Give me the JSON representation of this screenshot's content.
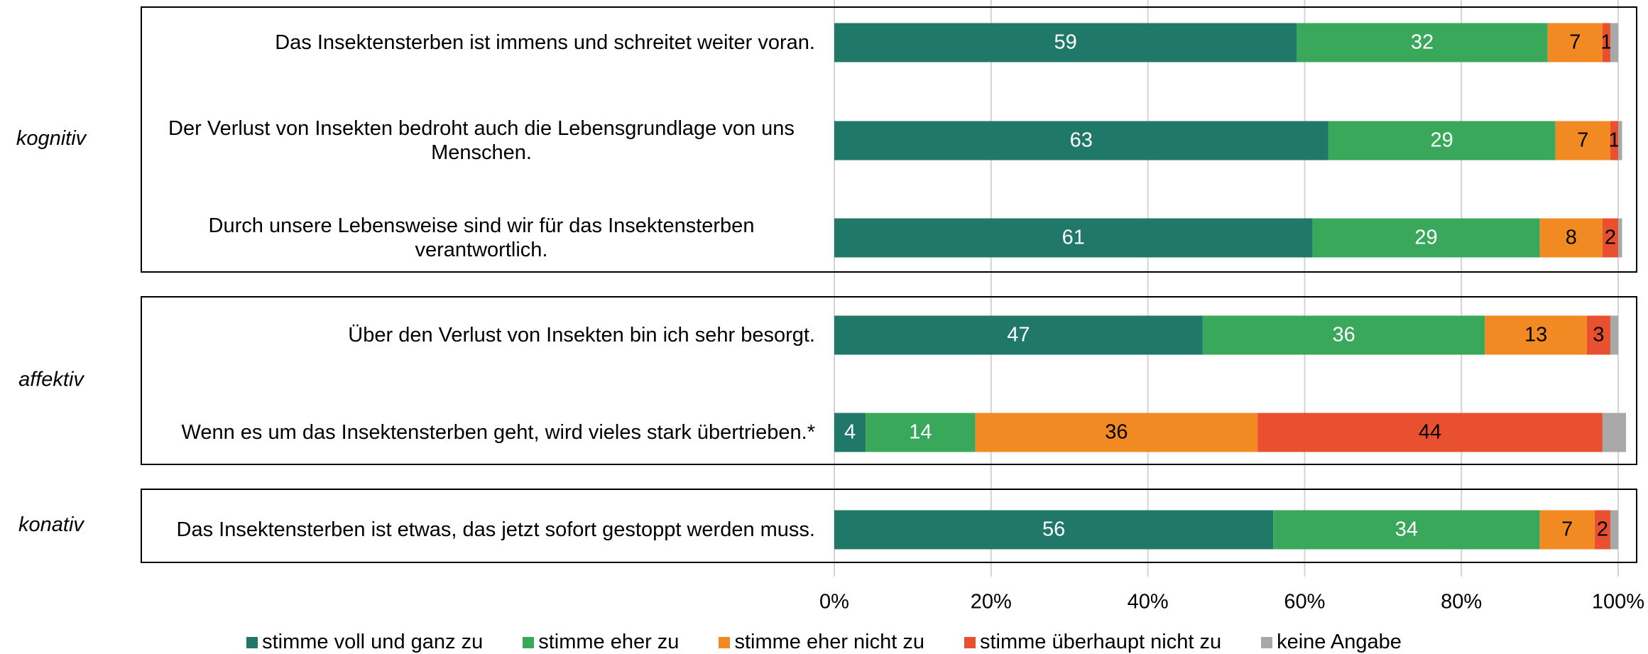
{
  "chart_data": {
    "type": "stacked_barh",
    "categories": [
      "Das Insektensterben ist immens und schreitet weiter voran.",
      "Der Verlust von Insekten bedroht auch die Lebensgrundlage von uns Menschen.",
      "Durch unsere Lebensweise sind wir für das Insektensterben verantwortlich.",
      "Über den Verlust von Insekten bin ich sehr besorgt.",
      "Wenn es um das Insektensterben geht, wird vieles stark übertrieben.*",
      "Das Insektensterben ist etwas, das jetzt sofort gestoppt werden muss."
    ],
    "groups": [
      {
        "label": "kognitiv",
        "count": 3
      },
      {
        "label": "affektiv",
        "count": 2
      },
      {
        "label": "konativ",
        "count": 1
      }
    ],
    "series": [
      {
        "name": "stimme voll und ganz zu",
        "color": "#207868",
        "label_color": "#ffffff",
        "show_labels": true,
        "values": [
          59,
          63,
          61,
          47,
          4,
          56
        ]
      },
      {
        "name": "stimme eher zu",
        "color": "#3aa85a",
        "label_color": "#ffffff",
        "show_labels": true,
        "values": [
          32,
          29,
          29,
          36,
          14,
          34
        ]
      },
      {
        "name": "stimme eher nicht zu",
        "color": "#f28a24",
        "label_color": "#000000",
        "show_labels": true,
        "values": [
          7,
          7,
          8,
          13,
          36,
          7
        ]
      },
      {
        "name": "stimme überhaupt nicht zu",
        "color": "#e8502f",
        "label_color": "#000000",
        "show_labels": true,
        "values": [
          1,
          1,
          2,
          3,
          44,
          2
        ]
      },
      {
        "name": "keine Angabe",
        "color": "#a8a8a8",
        "label_color": "#000000",
        "show_labels": false,
        "values": [
          1,
          0.5,
          0.5,
          1,
          3,
          1
        ]
      }
    ],
    "xlim": [
      0,
      100
    ],
    "xticks": [
      {
        "value": 0,
        "label": "0%"
      },
      {
        "value": 20,
        "label": "20%"
      },
      {
        "value": 40,
        "label": "40%"
      },
      {
        "value": 60,
        "label": "60%"
      },
      {
        "value": 80,
        "label": "80%"
      },
      {
        "value": 100,
        "label": "100%"
      }
    ],
    "grid": true,
    "legend": "bottom"
  }
}
